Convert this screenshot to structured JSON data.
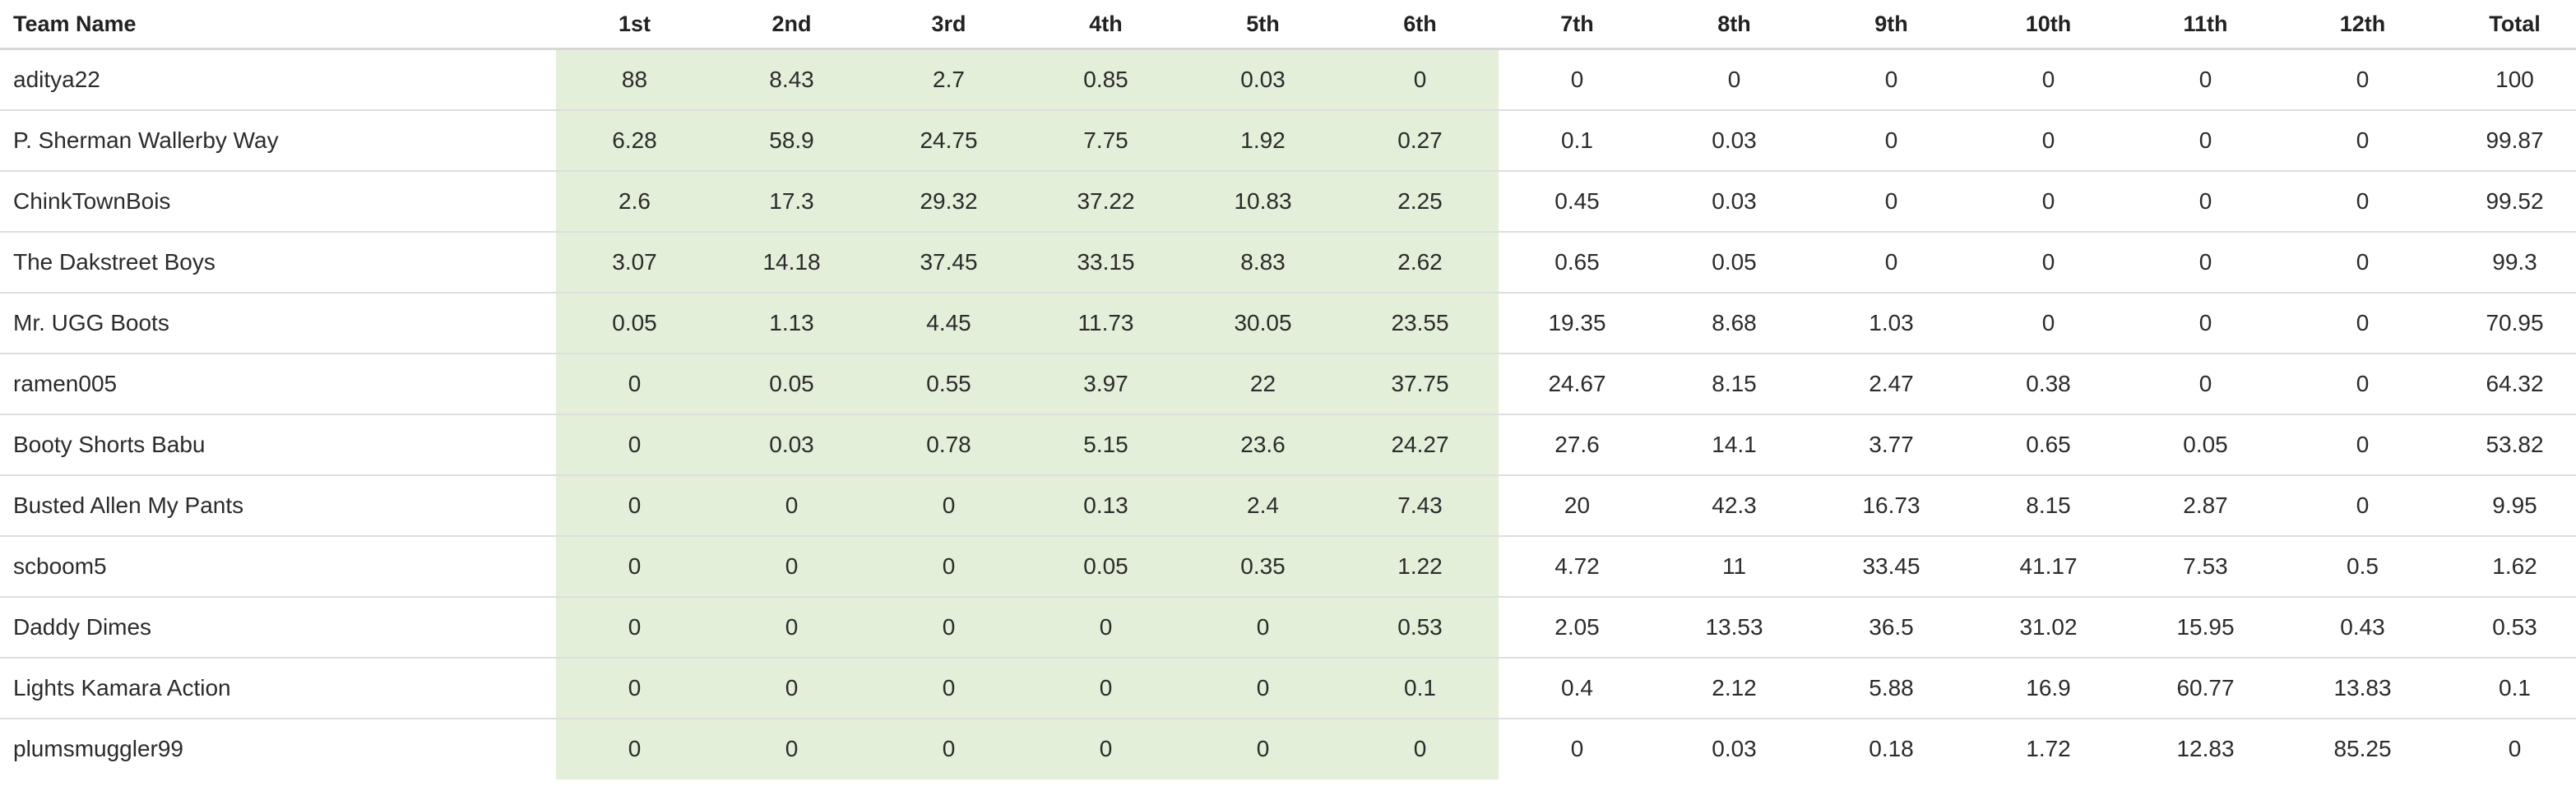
{
  "table": {
    "columns": [
      "Team Name",
      "1st",
      "2nd",
      "3rd",
      "4th",
      "5th",
      "6th",
      "7th",
      "8th",
      "9th",
      "10th",
      "11th",
      "12th",
      "Total"
    ],
    "highlight_color": "#e3efd9",
    "highlighted_places": [
      "1st",
      "2nd",
      "3rd",
      "4th",
      "5th",
      "6th"
    ],
    "rows": [
      {
        "team": "aditya22",
        "values": [
          "88",
          "8.43",
          "2.7",
          "0.85",
          "0.03",
          "0",
          "0",
          "0",
          "0",
          "0",
          "0",
          "0",
          "100"
        ]
      },
      {
        "team": "P. Sherman Wallerby Way",
        "values": [
          "6.28",
          "58.9",
          "24.75",
          "7.75",
          "1.92",
          "0.27",
          "0.1",
          "0.03",
          "0",
          "0",
          "0",
          "0",
          "99.87"
        ]
      },
      {
        "team": "ChinkTownBois",
        "values": [
          "2.6",
          "17.3",
          "29.32",
          "37.22",
          "10.83",
          "2.25",
          "0.45",
          "0.03",
          "0",
          "0",
          "0",
          "0",
          "99.52"
        ]
      },
      {
        "team": "The Dakstreet Boys",
        "values": [
          "3.07",
          "14.18",
          "37.45",
          "33.15",
          "8.83",
          "2.62",
          "0.65",
          "0.05",
          "0",
          "0",
          "0",
          "0",
          "99.3"
        ]
      },
      {
        "team": "Mr. UGG Boots",
        "values": [
          "0.05",
          "1.13",
          "4.45",
          "11.73",
          "30.05",
          "23.55",
          "19.35",
          "8.68",
          "1.03",
          "0",
          "0",
          "0",
          "70.95"
        ]
      },
      {
        "team": "ramen005",
        "values": [
          "0",
          "0.05",
          "0.55",
          "3.97",
          "22",
          "37.75",
          "24.67",
          "8.15",
          "2.47",
          "0.38",
          "0",
          "0",
          "64.32"
        ]
      },
      {
        "team": "Booty Shorts Babu",
        "values": [
          "0",
          "0.03",
          "0.78",
          "5.15",
          "23.6",
          "24.27",
          "27.6",
          "14.1",
          "3.77",
          "0.65",
          "0.05",
          "0",
          "53.82"
        ]
      },
      {
        "team": "Busted Allen My Pants",
        "values": [
          "0",
          "0",
          "0",
          "0.13",
          "2.4",
          "7.43",
          "20",
          "42.3",
          "16.73",
          "8.15",
          "2.87",
          "0",
          "9.95"
        ]
      },
      {
        "team": "scboom5",
        "values": [
          "0",
          "0",
          "0",
          "0.05",
          "0.35",
          "1.22",
          "4.72",
          "11",
          "33.45",
          "41.17",
          "7.53",
          "0.5",
          "1.62"
        ]
      },
      {
        "team": "Daddy Dimes",
        "values": [
          "0",
          "0",
          "0",
          "0",
          "0",
          "0.53",
          "2.05",
          "13.53",
          "36.5",
          "31.02",
          "15.95",
          "0.43",
          "0.53"
        ]
      },
      {
        "team": "Lights Kamara Action",
        "values": [
          "0",
          "0",
          "0",
          "0",
          "0",
          "0.1",
          "0.4",
          "2.12",
          "5.88",
          "16.9",
          "60.77",
          "13.83",
          "0.1"
        ]
      },
      {
        "team": "plumsmuggler99",
        "values": [
          "0",
          "0",
          "0",
          "0",
          "0",
          "0",
          "0",
          "0.03",
          "0.18",
          "1.72",
          "12.83",
          "85.25",
          "0"
        ]
      }
    ]
  }
}
